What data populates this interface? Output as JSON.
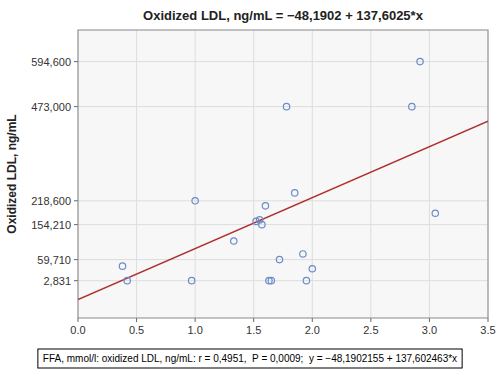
{
  "chart_data": {
    "type": "scatter",
    "title": "Oxidized LDL, ng/mL = −48,1902 + 137,6025*x",
    "ylabel": "Oxidized LDL, ng/mL",
    "annotation": "FFA, mmol/l: oxidized LDL, ng/mL: r = 0,4951,  P = 0,0009;  y = −48,1902155 + 137,602463*x",
    "series": [
      {
        "type": "scatter",
        "marker": "circle",
        "color": "#6b8cca",
        "x": [
          0.38,
          0.42,
          0.97,
          1.0,
          1.33,
          1.52,
          1.55,
          1.57,
          1.6,
          1.63,
          1.65,
          1.72,
          1.78,
          1.85,
          1.92,
          1.95,
          2.0,
          2.85,
          2.92,
          3.05
        ],
        "values": [
          42000,
          2831,
          2831,
          218600,
          110000,
          163000,
          167000,
          154210,
          205000,
          2831,
          2831,
          59710,
          473000,
          240000,
          75000,
          2831,
          35000,
          473000,
          594600,
          185000
        ]
      },
      {
        "type": "line",
        "line_style": "solid",
        "color": "#b03030",
        "x": [
          0.0,
          3.5
        ],
        "values": [
          -48190.2,
          433418.4205
        ]
      }
    ],
    "xlim": [
      0.0,
      3.5
    ],
    "ylim": [
      -98000,
      680000
    ],
    "xticks": [
      {
        "value": 0.0,
        "label": "0.0"
      },
      0.5,
      {
        "value": 1.0,
        "label": "1.0"
      },
      1.5,
      {
        "value": 2.0,
        "label": "2.0"
      },
      2.5,
      {
        "value": 3.0,
        "label": "3.0"
      },
      3.5
    ],
    "yticks": [
      {
        "value": 2831,
        "label": "2,831"
      },
      {
        "value": 59710,
        "label": "59,710"
      },
      {
        "value": 154210,
        "label": "154,210"
      },
      {
        "value": 218600,
        "label": "218,600"
      },
      {
        "value": 473000,
        "label": "473,000"
      },
      {
        "value": 594600,
        "label": "594,600"
      }
    ],
    "grid": true
  }
}
